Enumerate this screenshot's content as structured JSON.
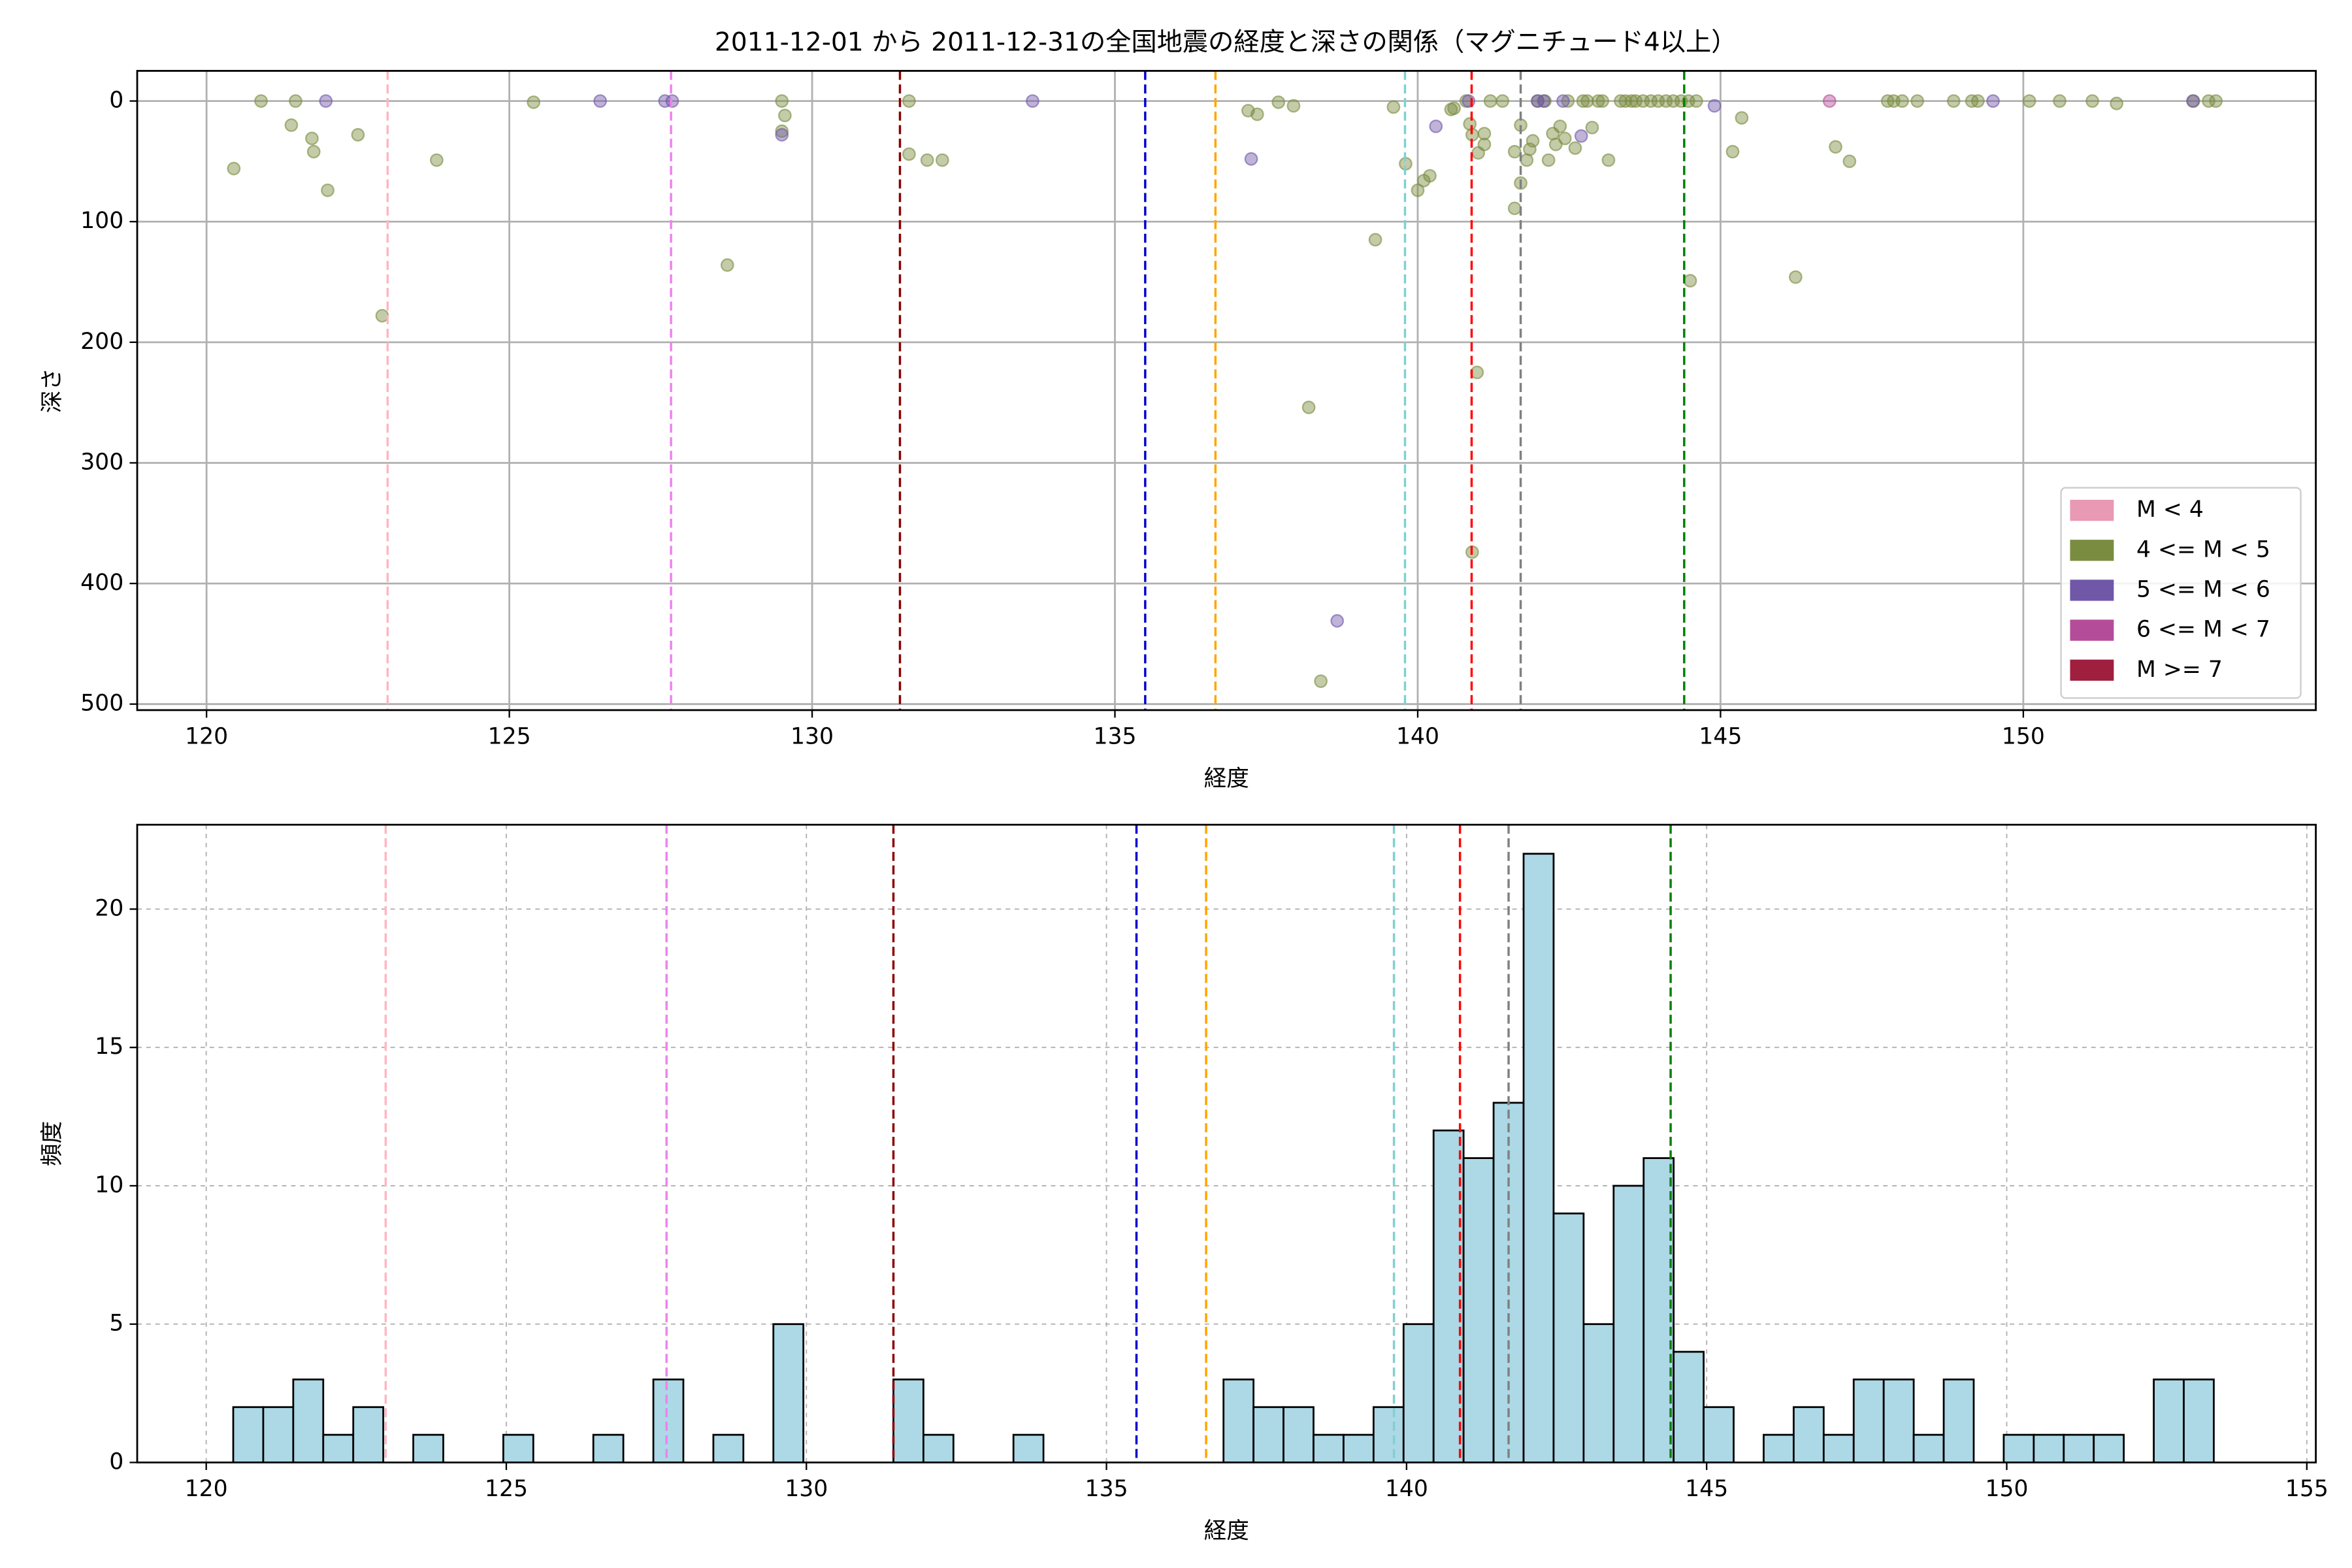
{
  "chart_data": [
    {
      "type": "scatter",
      "title": "2011-12-01 から 2011-12-31の全国地震の経度と深さの関係（マグニチュード4以上）",
      "xlabel": "経度",
      "ylabel": "深さ",
      "xlim": [
        118.855,
        154.83
      ],
      "ylim": [
        505,
        -25
      ],
      "xticks": [
        120,
        125,
        130,
        135,
        140,
        145,
        150
      ],
      "yticks": [
        0,
        100,
        200,
        300,
        400,
        500
      ],
      "grid": "solid",
      "legend": "lower right",
      "vlines": [
        {
          "x": 122.99,
          "color": "#ffb6c1"
        },
        {
          "x": 127.67,
          "color": "#ee82ee"
        },
        {
          "x": 131.45,
          "color": "#8b0000"
        },
        {
          "x": 135.5,
          "color": "#0000cd"
        },
        {
          "x": 136.66,
          "color": "#ffa500"
        },
        {
          "x": 139.79,
          "color": "#80d0d0"
        },
        {
          "x": 140.89,
          "color": "#ff0000"
        },
        {
          "x": 141.7,
          "color": "#808080"
        },
        {
          "x": 144.4,
          "color": "#008000"
        }
      ],
      "series": [
        {
          "name": "M < 4",
          "color": "#e899b4",
          "x": [],
          "y": []
        },
        {
          "name": "4 <= M < 5",
          "color": "#7a8c40",
          "x": [
            120.45,
            120.9,
            121.4,
            121.47,
            121.74,
            121.77,
            122.0,
            122.5,
            122.9,
            123.8,
            125.4,
            128.6,
            129.5,
            129.55,
            129.5,
            131.6,
            131.6,
            131.9,
            132.15,
            137.2,
            137.35,
            137.7,
            137.95,
            138.2,
            138.4,
            139.3,
            139.6,
            139.8,
            140.0,
            140.1,
            140.2,
            140.55,
            140.6,
            140.8,
            140.86,
            140.9,
            140.98,
            140.9,
            141.0,
            141.1,
            141.1,
            141.2,
            141.4,
            141.6,
            141.6,
            141.7,
            141.7,
            141.8,
            141.85,
            141.9,
            141.98,
            142.1,
            142.16,
            142.23,
            142.28,
            142.35,
            142.43,
            142.48,
            142.6,
            142.73,
            142.8,
            142.88,
            142.98,
            143.05,
            143.15,
            143.35,
            143.43,
            143.53,
            143.6,
            143.72,
            143.85,
            143.97,
            144.1,
            144.22,
            144.35,
            144.47,
            144.6,
            144.5,
            145.2,
            145.35,
            146.24,
            146.9,
            147.13,
            147.76,
            147.86,
            148.0,
            148.25,
            148.85,
            149.15,
            149.25,
            150.1,
            150.6,
            151.14,
            151.54,
            152.81,
            153.06,
            153.18
          ],
          "y": [
            56,
            0,
            20,
            0,
            31,
            42,
            74,
            28,
            178,
            49,
            1,
            136,
            0,
            12,
            25,
            0,
            44,
            49,
            49,
            8,
            11,
            1,
            4,
            254,
            481,
            115,
            5,
            52,
            74,
            66,
            62,
            7,
            6,
            0,
            19,
            374,
            225,
            28,
            43,
            36,
            27,
            0,
            0,
            42,
            89,
            68,
            20,
            49,
            40,
            33,
            0,
            0,
            49,
            27,
            36,
            21,
            31,
            0,
            39,
            0,
            0,
            22,
            0,
            0,
            49,
            0,
            0,
            0,
            0,
            0,
            0,
            0,
            0,
            0,
            0,
            0,
            0,
            149,
            42,
            14,
            146,
            38,
            50,
            0,
            0,
            0,
            0,
            0,
            0,
            0,
            0,
            0,
            0,
            2,
            0,
            0,
            0
          ]
        },
        {
          "name": "5 <= M < 6",
          "color": "#7057a8",
          "x": [
            121.97,
            126.5,
            127.57,
            127.69,
            129.5,
            133.64,
            137.25,
            138.67,
            140.3,
            140.84,
            141.98,
            142.08,
            142.4,
            142.7,
            144.9,
            149.5,
            152.8
          ],
          "y": [
            0,
            0,
            0,
            0,
            28,
            0,
            48,
            431,
            21,
            0,
            0,
            0,
            0,
            29,
            4,
            0,
            0
          ]
        },
        {
          "name": "6 <= M < 7",
          "color": "#b54c9a",
          "x": [
            146.8
          ],
          "y": [
            0
          ]
        },
        {
          "name": "M >= 7",
          "color": "#9f1f3f",
          "x": [],
          "y": []
        }
      ]
    },
    {
      "type": "histogram",
      "xlabel": "経度",
      "ylabel": "頻度",
      "xlim": [
        118.85,
        155.15
      ],
      "ylim": [
        0,
        23.05
      ],
      "xticks": [
        120,
        125,
        130,
        135,
        140,
        145,
        150,
        155
      ],
      "yticks": [
        0,
        5,
        10,
        15,
        20
      ],
      "grid": "dashed",
      "color": "#add8e6",
      "edgecolor": "#000000",
      "vlines": [
        {
          "x": 122.99,
          "color": "#ffb6c1"
        },
        {
          "x": 127.67,
          "color": "#ee82ee"
        },
        {
          "x": 131.45,
          "color": "#8b0000"
        },
        {
          "x": 135.5,
          "color": "#0000cd"
        },
        {
          "x": 136.66,
          "color": "#ffa500"
        },
        {
          "x": 139.79,
          "color": "#80d0d0"
        },
        {
          "x": 140.89,
          "color": "#ff0000"
        },
        {
          "x": 141.7,
          "color": "#808080"
        },
        {
          "x": 144.4,
          "color": "#008000"
        }
      ],
      "bins": [
        120.45,
        120.95,
        121.45,
        121.95,
        122.45,
        122.95,
        123.45,
        123.95,
        124.45,
        124.95,
        125.45,
        125.95,
        126.45,
        126.95,
        127.45,
        127.95,
        128.45,
        128.95,
        129.45,
        129.95,
        130.45,
        130.95,
        131.45,
        131.95,
        132.45,
        132.95,
        133.45,
        133.95,
        134.45,
        134.95,
        135.45,
        135.95,
        136.45,
        136.95,
        137.45,
        137.95,
        138.45,
        138.95,
        139.45,
        139.95,
        140.45,
        140.95,
        141.45,
        141.95,
        142.45,
        142.95,
        143.45,
        143.95,
        144.45,
        144.95,
        145.45,
        145.95,
        146.45,
        146.95,
        147.45,
        147.95,
        148.45,
        148.95,
        149.45,
        149.95,
        150.45,
        150.95,
        151.45,
        151.95,
        152.45,
        152.95,
        153.45
      ],
      "counts": [
        2,
        2,
        3,
        1,
        2,
        0,
        1,
        0,
        0,
        1,
        0,
        0,
        1,
        0,
        3,
        0,
        1,
        0,
        5,
        0,
        0,
        0,
        3,
        1,
        0,
        0,
        1,
        0,
        0,
        0,
        0,
        0,
        0,
        3,
        2,
        2,
        1,
        1,
        2,
        5,
        12,
        11,
        13,
        22,
        9,
        5,
        10,
        11,
        4,
        2,
        0,
        1,
        2,
        1,
        3,
        3,
        1,
        3,
        0,
        1,
        1,
        1,
        1,
        0,
        3,
        3
      ]
    }
  ]
}
